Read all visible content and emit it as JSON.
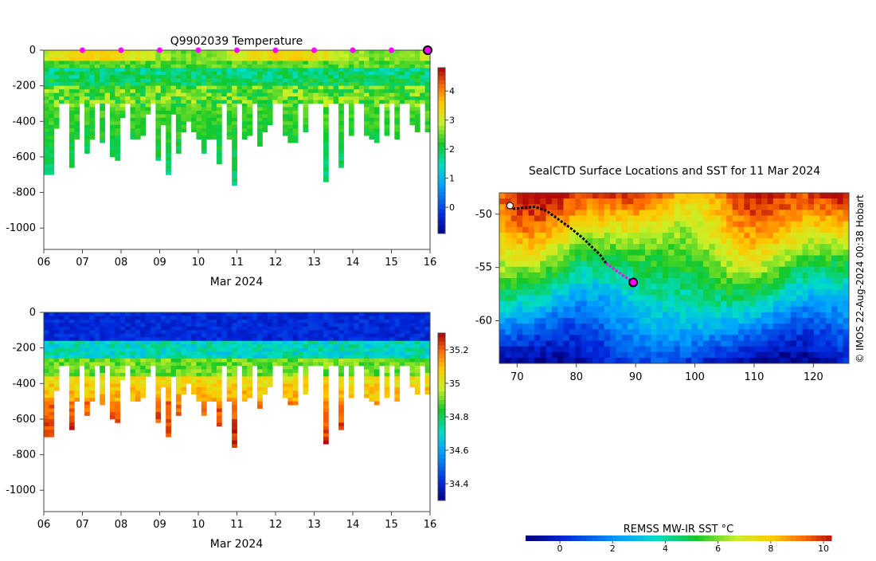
{
  "chart_data": [
    {
      "type": "heatmap",
      "title": "Q9902039  Temperature",
      "xlabel": "Mar 2024",
      "ylabel": "",
      "xticks": [
        "06",
        "07",
        "08",
        "09",
        "10",
        "11",
        "12",
        "13",
        "14",
        "15",
        "16"
      ],
      "yticks": [
        "0",
        "-200",
        "-400",
        "-600",
        "-800",
        "-1000"
      ],
      "ylim": [
        -1120,
        0
      ],
      "colorbar_ticks": [
        "4",
        "3",
        "2",
        "1",
        "0"
      ],
      "clim": [
        -0.9,
        4.8
      ],
      "profile_max_depths": [
        700,
        700,
        430,
        300,
        300,
        650,
        500,
        300,
        580,
        500,
        300,
        520,
        300,
        600,
        610,
        380,
        300,
        500,
        500,
        480,
        360,
        300,
        620,
        420,
        700,
        350,
        580,
        450,
        400,
        460,
        500,
        570,
        500,
        500,
        630,
        300,
        500,
        760,
        300,
        500,
        480,
        300,
        540,
        450,
        420,
        300,
        300,
        480,
        520,
        520,
        300,
        460,
        300,
        300,
        300,
        730,
        300,
        300,
        660,
        300,
        470,
        300,
        300,
        480,
        500,
        520,
        300,
        480,
        300,
        490,
        300,
        300,
        420,
        460,
        300,
        450
      ]
    },
    {
      "type": "heatmap",
      "title": "",
      "xlabel": "Mar 2024",
      "ylabel": "",
      "xticks": [
        "06",
        "07",
        "08",
        "09",
        "10",
        "11",
        "12",
        "13",
        "14",
        "15",
        "16"
      ],
      "yticks": [
        "0",
        "-200",
        "-400",
        "-600",
        "-800",
        "-1000"
      ],
      "ylim": [
        -1120,
        0
      ],
      "colorbar_ticks": [
        "35.2",
        "35",
        "34.8",
        "34.6",
        "34.4"
      ],
      "clim": [
        34.3,
        35.3
      ]
    },
    {
      "type": "heatmap",
      "title": "SealCTD Surface Locations and SST for 11 Mar 2024",
      "xticks": [
        "70",
        "80",
        "90",
        "100",
        "110",
        "120"
      ],
      "yticks": [
        "-50",
        "-55",
        "-60"
      ],
      "xlim": [
        67,
        126
      ],
      "ylim": [
        -64,
        -48
      ],
      "track": [
        [
          68.8,
          -49.2
        ],
        [
          69.5,
          -49.5
        ],
        [
          71,
          -49.4
        ],
        [
          73,
          -49.3
        ],
        [
          75,
          -49.7
        ],
        [
          77,
          -50.5
        ],
        [
          79,
          -51.3
        ],
        [
          81,
          -52.2
        ],
        [
          82.5,
          -53.0
        ],
        [
          84,
          -53.8
        ],
        [
          85,
          -54.6
        ],
        [
          86.5,
          -55.2
        ],
        [
          88,
          -55.8
        ],
        [
          89.6,
          -56.4
        ]
      ],
      "recent_track_from_index": 10,
      "current_position": [
        89.6,
        -56.4
      ],
      "start_position": [
        68.8,
        -49.2
      ],
      "credit": "© IMOS 22-Aug-2024 00:38 Hobart"
    },
    {
      "type": "colorbar",
      "title": "REMSS MW-IR SST °C",
      "xticks": [
        "0",
        "2",
        "4",
        "6",
        "8",
        "10"
      ],
      "clim": [
        -1.3,
        10.3
      ]
    }
  ]
}
